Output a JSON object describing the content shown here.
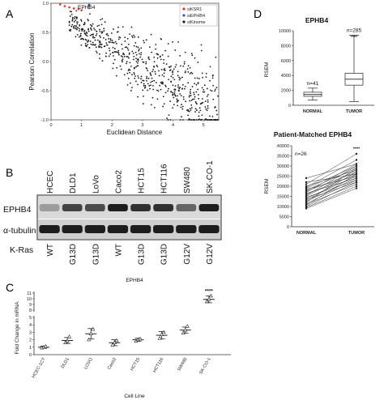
{
  "figure": {
    "panel_letters": [
      "A",
      "B",
      "C",
      "D"
    ]
  },
  "chart_data": [
    {
      "type": "scatter",
      "panel": "A",
      "xlabel": "Euclidean Distance",
      "ylabel": "Pearson Correlation",
      "xlim": [
        0,
        5.5
      ],
      "ylim": [
        -1,
        1
      ],
      "xticks": [
        "0",
        "1",
        "2",
        "3",
        "4",
        "5"
      ],
      "yticks": [
        "1.0",
        "0.5",
        "0.0",
        "-0.5",
        "-1.0"
      ],
      "annotation": "EPHB4",
      "legend": [
        {
          "label": "siKSR1",
          "color": "#e3342f"
        },
        {
          "label": "siEPHB4",
          "color": "#3a55c8"
        },
        {
          "label": "siKinome",
          "color": "#1a1a1a"
        }
      ],
      "highlight_points": [
        {
          "x": 0.3,
          "y": 0.98
        },
        {
          "x": 0.45,
          "y": 0.95
        },
        {
          "x": 0.6,
          "y": 0.93
        },
        {
          "x": 0.75,
          "y": 0.91
        },
        {
          "x": 0.9,
          "y": 0.9
        },
        {
          "x": 1.0,
          "y": 0.88
        }
      ],
      "blue_point": {
        "x": 1.25,
        "y": 0.97
      },
      "cloud": {
        "n": 640,
        "seed": 7
      }
    },
    {
      "type": "table",
      "panel": "B",
      "cell_lines": [
        "HCEC",
        "DLD1",
        "LoVo",
        "Caco2",
        "HCT15",
        "HCT116",
        "SW480",
        "SK-CO-1"
      ],
      "bands": [
        "EPHB4",
        "α-tubulin"
      ],
      "row_label": "K-Ras",
      "kras": [
        "WT",
        "G13D",
        "G13D",
        "WT",
        "G13D",
        "G13D",
        "G12V",
        "G12V"
      ],
      "ephb4_intensity": [
        0.25,
        0.75,
        0.7,
        0.95,
        0.85,
        0.85,
        0.55,
        0.95
      ],
      "tubulin_intensity": [
        0.9,
        0.9,
        0.9,
        0.9,
        0.9,
        0.9,
        0.9,
        0.9
      ]
    },
    {
      "type": "scatter",
      "panel": "C",
      "title": "EPHB4",
      "xlabel": "Cell Line",
      "ylabel": "Fold Change in mRNA",
      "y_scale": "broken",
      "yticks": [
        "0",
        "1",
        "2",
        "3",
        "4",
        "5",
        "8",
        "9",
        "10",
        "11"
      ],
      "categories": [
        "HCEC-1CT",
        "DLD1",
        "LOVO",
        "Caco2",
        "HCT15",
        "HCT116",
        "SW480",
        "SK-CO-1"
      ],
      "means": [
        1.0,
        1.9,
        2.8,
        1.6,
        2.0,
        2.6,
        3.3,
        9.9
      ],
      "errors": [
        0.15,
        0.4,
        0.7,
        0.4,
        0.2,
        0.5,
        0.4,
        0.6
      ],
      "points": [
        [
          0.9,
          1.0,
          1.1
        ],
        [
          1.6,
          1.8,
          2.4
        ],
        [
          2.0,
          2.8,
          3.4
        ],
        [
          1.3,
          1.6,
          1.9
        ],
        [
          1.8,
          2.0,
          2.1
        ],
        [
          2.2,
          2.7,
          3.0
        ],
        [
          2.9,
          3.3,
          3.8
        ],
        [
          9.5,
          9.9,
          10.5
        ]
      ],
      "significance": [
        {
          "category": "SK-CO-1",
          "label": "****"
        }
      ]
    },
    {
      "type": "box",
      "panel": "D-top",
      "title": "EPHB4",
      "ylabel": "RSEM",
      "ylim": [
        0,
        10000
      ],
      "yticks": [
        "0",
        "2000",
        "4000",
        "6000",
        "8000",
        "10000"
      ],
      "categories": [
        "NORMAL",
        "TUMOR"
      ],
      "n_labels": [
        "n=41",
        "n=285"
      ],
      "significance": "****",
      "boxes": [
        {
          "min": 700,
          "q1": 1200,
          "median": 1450,
          "q3": 1750,
          "max": 2300
        },
        {
          "min": 500,
          "q1": 2700,
          "median": 3500,
          "q3": 4300,
          "max": 9400
        }
      ]
    },
    {
      "type": "line",
      "panel": "D-bottom",
      "title": "Patient-Matched EPHB4",
      "ylabel": "RSEM",
      "ylim": [
        0,
        40000
      ],
      "yticks": [
        "0",
        "5000",
        "10000",
        "15000",
        "20000",
        "25000",
        "30000",
        "35000",
        "40000"
      ],
      "categories": [
        "NORMAL",
        "TUMOR"
      ],
      "n_label": "n=26",
      "significance": "****",
      "pairs": [
        [
          24000,
          31000
        ],
        [
          22000,
          26000
        ],
        [
          21000,
          36000
        ],
        [
          20000,
          28000
        ],
        [
          19500,
          33000
        ],
        [
          19000,
          30000
        ],
        [
          18500,
          25000
        ],
        [
          18000,
          29000
        ],
        [
          17500,
          27000
        ],
        [
          17000,
          31000
        ],
        [
          16500,
          24000
        ],
        [
          16000,
          26000
        ],
        [
          15500,
          30000
        ],
        [
          15000,
          28000
        ],
        [
          14500,
          23000
        ],
        [
          14000,
          25000
        ],
        [
          13500,
          22000
        ],
        [
          13000,
          27000
        ],
        [
          12500,
          24000
        ],
        [
          12000,
          29000
        ],
        [
          11500,
          23000
        ],
        [
          11000,
          21000
        ],
        [
          10500,
          26000
        ],
        [
          10000,
          22000
        ],
        [
          9500,
          20000
        ],
        [
          9000,
          19000
        ]
      ]
    }
  ]
}
